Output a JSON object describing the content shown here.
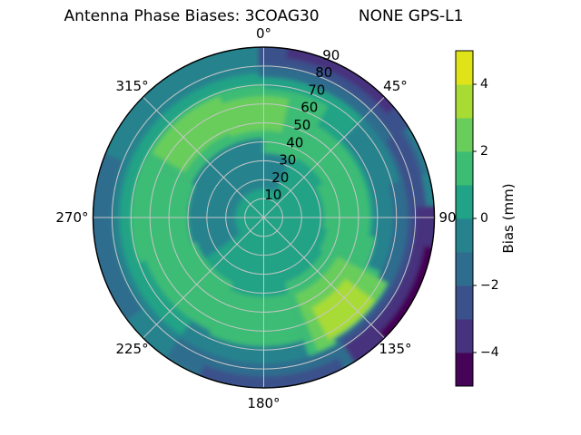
{
  "title": "Antenna Phase Biases: 3COAG30        NONE GPS-L1",
  "chart_data": {
    "type": "heatmap",
    "projection": "polar",
    "title": "Antenna Phase Biases: 3COAG30        NONE GPS-L1",
    "theta_zero_location": "top",
    "theta_direction": "clockwise",
    "angular_ticks": [
      {
        "deg": 0,
        "label": "0°"
      },
      {
        "deg": 45,
        "label": "45°"
      },
      {
        "deg": 90,
        "label": "90"
      },
      {
        "deg": 135,
        "label": "135°"
      },
      {
        "deg": 180,
        "label": "180°"
      },
      {
        "deg": 225,
        "label": "225°"
      },
      {
        "deg": 270,
        "label": "270°"
      },
      {
        "deg": 315,
        "label": "315°"
      }
    ],
    "radial_ticks": [
      "10",
      "20",
      "30",
      "40",
      "50",
      "60",
      "70",
      "80",
      "90"
    ],
    "r_max": 90,
    "grid_color": "#c6c6c6",
    "outline_color": "#000000",
    "bands": {
      "b0": {
        "range": [
          -5,
          -4
        ],
        "color": "#450457"
      },
      "b1": {
        "range": [
          -4,
          -3
        ],
        "color": "#46327e"
      },
      "b2": {
        "range": [
          -3,
          -2
        ],
        "color": "#3b518b"
      },
      "b3": {
        "range": [
          -2,
          -1
        ],
        "color": "#2e6d8e"
      },
      "b4": {
        "range": [
          -1,
          0
        ],
        "color": "#26838e"
      },
      "b5": {
        "range": [
          0,
          1
        ],
        "color": "#20a386"
      },
      "b6": {
        "range": [
          1,
          2
        ],
        "color": "#3dbc74"
      },
      "b7": {
        "range": [
          2,
          3
        ],
        "color": "#69cd5b"
      },
      "b8": {
        "range": [
          3,
          4
        ],
        "color": "#a8db34"
      },
      "b9": {
        "range": [
          4,
          5
        ],
        "color": "#dfe318"
      }
    },
    "regions": [
      {
        "t0": 0,
        "t1": 360,
        "r0": 0,
        "r1": 95,
        "band": "b4"
      },
      {
        "t0": 0,
        "t1": 360,
        "r0": 0,
        "r1": 76,
        "band": "b5"
      },
      {
        "t0": 235,
        "t1": 385,
        "r0": 15,
        "r1": 42,
        "band": "b4"
      },
      {
        "t0": 45,
        "t1": 140,
        "r0": 58,
        "r1": 78,
        "band": "b4"
      },
      {
        "t0": 160,
        "t1": 215,
        "r0": 62,
        "r1": 80,
        "band": "b4"
      },
      {
        "t0": 295,
        "t1": 360,
        "r0": 42,
        "r1": 70,
        "band": "b6"
      },
      {
        "t0": 0,
        "t1": 30,
        "r0": 34,
        "r1": 68,
        "band": "b6"
      },
      {
        "t0": 30,
        "t1": 60,
        "r0": 36,
        "r1": 56,
        "band": "b6"
      },
      {
        "t0": 60,
        "t1": 100,
        "r0": 32,
        "r1": 56,
        "band": "b6"
      },
      {
        "t0": 100,
        "t1": 120,
        "r0": 34,
        "r1": 60,
        "band": "b6"
      },
      {
        "t0": 115,
        "t1": 162,
        "r0": 36,
        "r1": 78,
        "band": "b6"
      },
      {
        "t0": 162,
        "t1": 205,
        "r0": 42,
        "r1": 68,
        "band": "b6"
      },
      {
        "t0": 205,
        "t1": 250,
        "r0": 38,
        "r1": 66,
        "band": "b6"
      },
      {
        "t0": 250,
        "t1": 295,
        "r0": 40,
        "r1": 70,
        "band": "b6"
      },
      {
        "t0": 338,
        "t1": 372,
        "r0": 46,
        "r1": 64,
        "band": "b7"
      },
      {
        "t0": 300,
        "t1": 340,
        "r0": 48,
        "r1": 68,
        "band": "b7"
      },
      {
        "t0": 118,
        "t1": 158,
        "r0": 44,
        "r1": 76,
        "band": "b7"
      },
      {
        "t0": 127,
        "t1": 152,
        "r0": 54,
        "r1": 73,
        "band": "b8"
      },
      {
        "t0": 358,
        "t1": 435,
        "r0": 74,
        "r1": 89,
        "band": "b3"
      },
      {
        "t0": 75,
        "t1": 118,
        "r0": 68,
        "r1": 82,
        "band": "b3"
      },
      {
        "t0": 118,
        "t1": 150,
        "r0": 74,
        "r1": 84,
        "band": "b3"
      },
      {
        "t0": 148,
        "t1": 215,
        "r0": 77,
        "r1": 90,
        "band": "b3"
      },
      {
        "t0": 233,
        "t1": 292,
        "r0": 80,
        "r1": 95,
        "band": "b3"
      },
      {
        "t0": 358,
        "t1": 418,
        "r0": 80,
        "r1": 95,
        "band": "b2"
      },
      {
        "t0": 58,
        "t1": 148,
        "r0": 76,
        "r1": 86,
        "band": "b2"
      },
      {
        "t0": 152,
        "t1": 202,
        "r0": 84,
        "r1": 95,
        "band": "b2"
      },
      {
        "t0": 8,
        "t1": 50,
        "r0": 85,
        "r1": 95,
        "band": "b1"
      },
      {
        "t0": 86,
        "t1": 148,
        "r0": 80,
        "r1": 95,
        "band": "b1"
      },
      {
        "t0": 100,
        "t1": 135,
        "r0": 86,
        "r1": 95,
        "band": "b0"
      }
    ],
    "colorbar": {
      "label": "Bias (mm)",
      "range": [
        -5,
        5
      ],
      "segment_colors_bottom_to_top": [
        "#450457",
        "#46327e",
        "#3b518b",
        "#2e6d8e",
        "#26838e",
        "#20a386",
        "#3dbc74",
        "#69cd5b",
        "#a8db34",
        "#dfe318"
      ],
      "ticks": [
        {
          "value": 4,
          "label": "4"
        },
        {
          "value": 2,
          "label": "2"
        },
        {
          "value": 0,
          "label": "0"
        },
        {
          "value": -2,
          "label": "−2"
        },
        {
          "value": -4,
          "label": "−4"
        }
      ]
    }
  }
}
